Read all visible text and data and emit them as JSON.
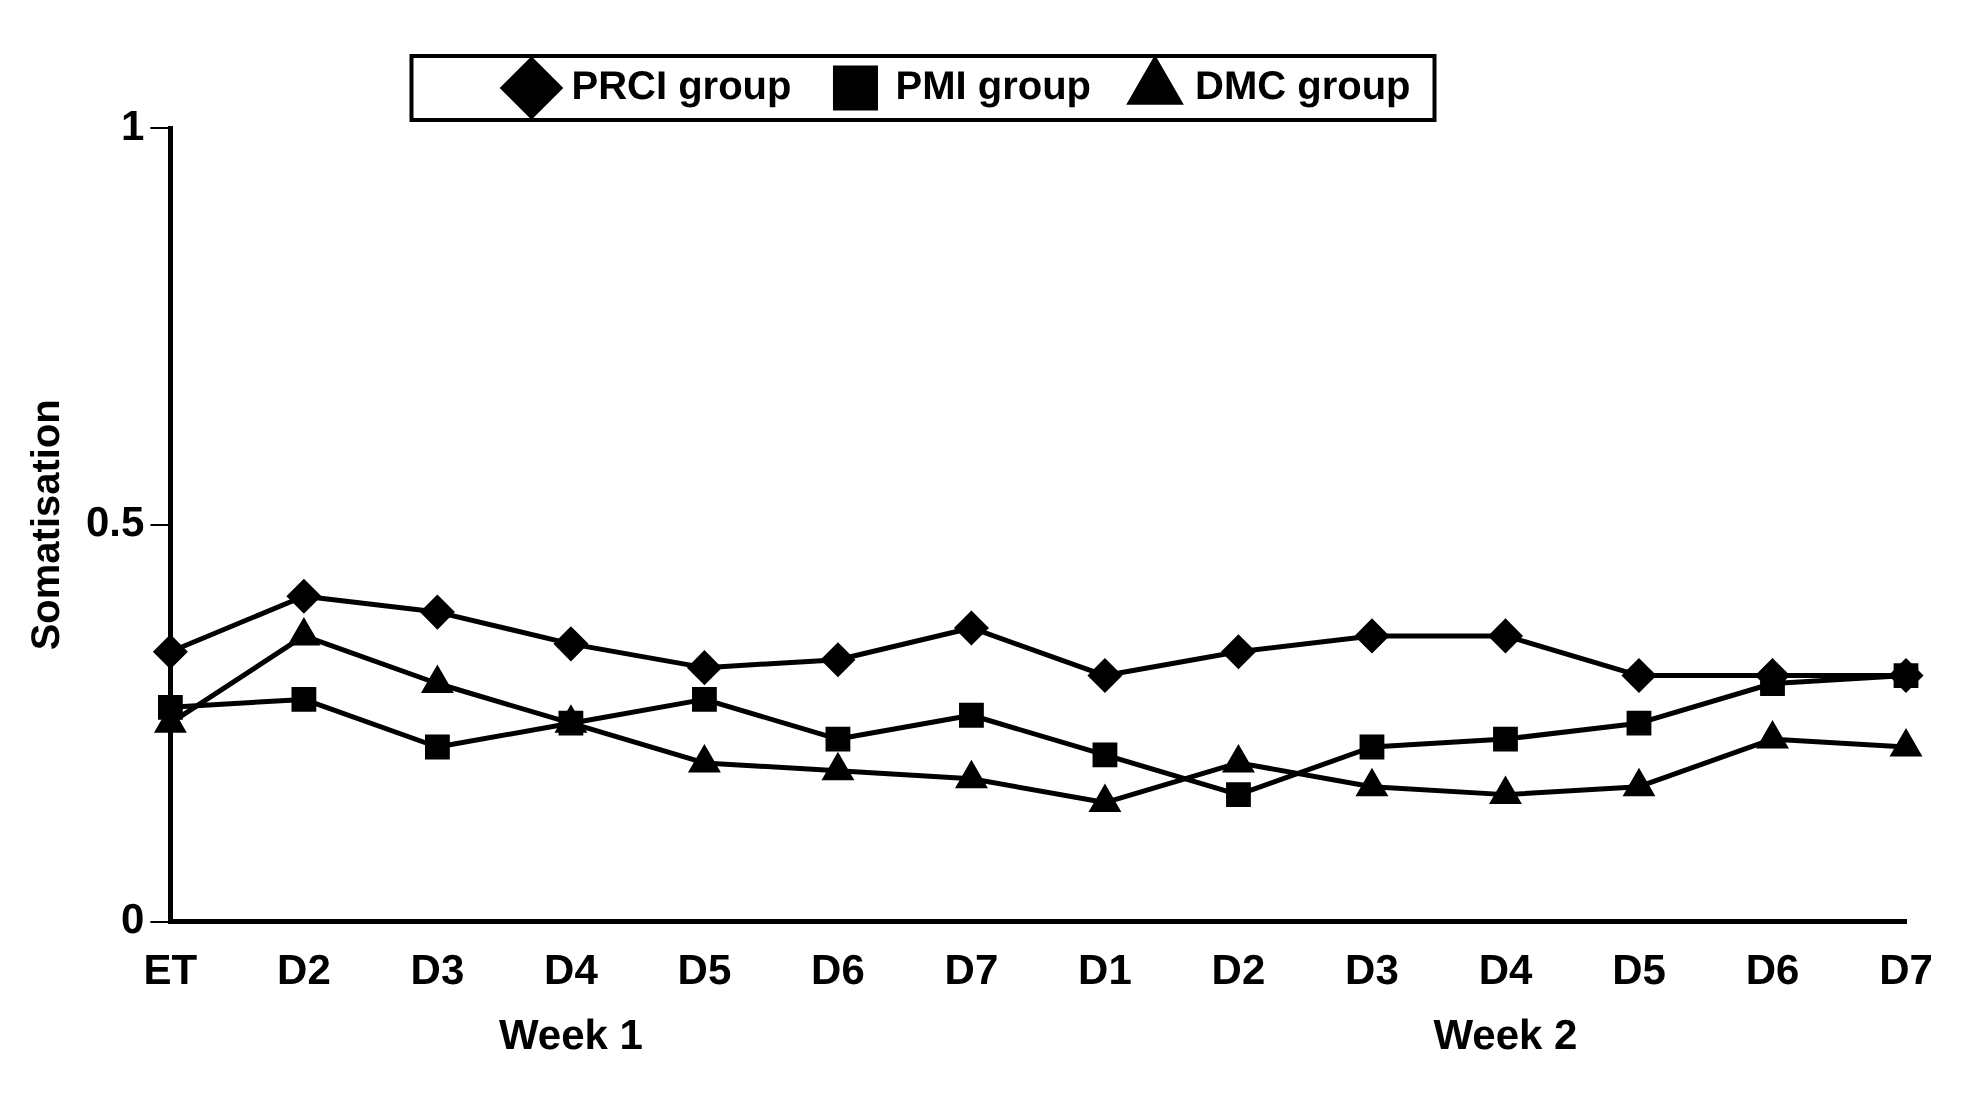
{
  "chart_data": {
    "type": "line",
    "ylabel": "Somatisation",
    "categories": [
      "ET",
      "D2",
      "D3",
      "D4",
      "D5",
      "D6",
      "D7",
      "D1",
      "D2",
      "D3",
      "D4",
      "D5",
      "D6",
      "D7"
    ],
    "series": [
      {
        "name": "PRCI group",
        "color": "#000000",
        "marker": "diamond",
        "values": [
          0.34,
          0.41,
          0.39,
          0.35,
          0.32,
          0.33,
          0.37,
          0.31,
          0.34,
          0.36,
          0.36,
          0.31,
          0.31,
          0.31
        ]
      },
      {
        "name": "PMI group",
        "color": "#000000",
        "marker": "square",
        "values": [
          0.27,
          0.28,
          0.22,
          0.25,
          0.28,
          0.23,
          0.26,
          0.21,
          0.16,
          0.22,
          0.23,
          0.25,
          0.3,
          0.31
        ]
      },
      {
        "name": "DMC group",
        "color": "#000000",
        "marker": "triangle",
        "values": [
          0.25,
          0.36,
          0.3,
          0.25,
          0.2,
          0.19,
          0.18,
          0.15,
          0.2,
          0.17,
          0.16,
          0.17,
          0.23,
          0.22
        ]
      }
    ],
    "ylim": [
      0,
      1
    ],
    "yticks": [
      0,
      0.5,
      1
    ],
    "grid": false,
    "legend": "top",
    "annotations": [
      "Week 1",
      "Week 2"
    ]
  }
}
